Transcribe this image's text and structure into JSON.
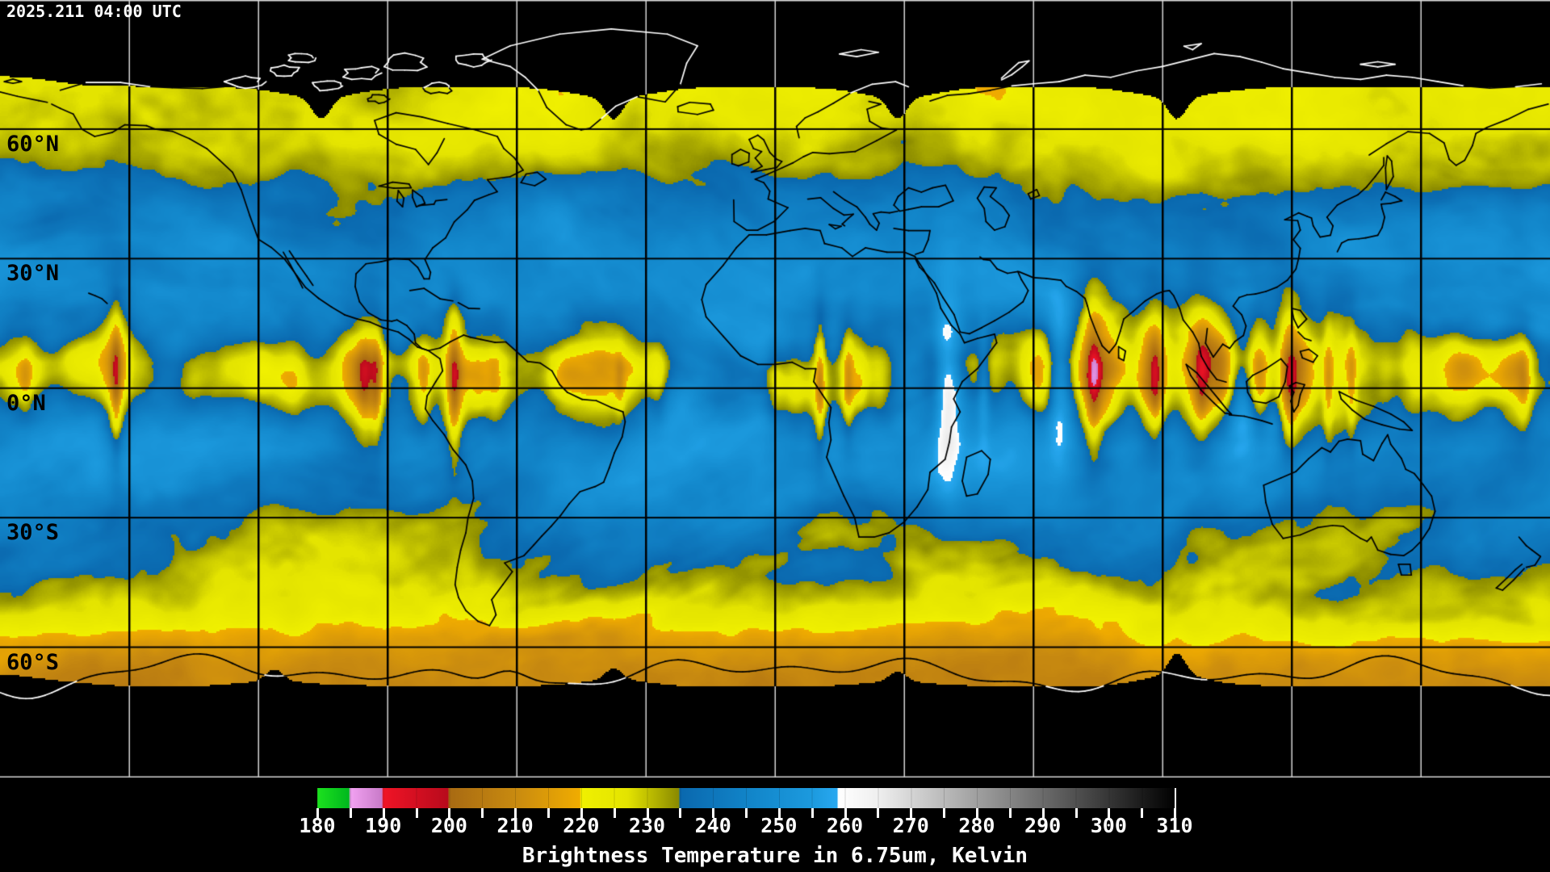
{
  "header": {
    "timestamp": "2025.211 04:00 UTC"
  },
  "map": {
    "latitude_labels": [
      {
        "text": "60°N",
        "lat": 60
      },
      {
        "text": "30°N",
        "lat": 30
      },
      {
        "text": "0°N",
        "lat": 0
      },
      {
        "text": "30°S",
        "lat": -30
      },
      {
        "text": "60°S",
        "lat": -60
      }
    ],
    "grid": {
      "lon_step_deg": 30,
      "lat_step_deg": 30,
      "color_over_data": "#000000",
      "color_over_space": "#d6d6d6"
    },
    "space_color": "#000000",
    "coastline": {
      "color_over_data": "#000000",
      "color_over_space": "#ffffff"
    }
  },
  "colorbar": {
    "title": "Brightness Temperature in 6.75um, Kelvin",
    "min": 180,
    "max": 310,
    "tick_step": 5,
    "label_step": 10,
    "tick_labels": [
      "180",
      "190",
      "200",
      "210",
      "220",
      "230",
      "240",
      "250",
      "260",
      "270",
      "280",
      "290",
      "300",
      "310"
    ],
    "stops": [
      [
        180,
        "#1ce11e"
      ],
      [
        184.8,
        "#00b81e"
      ],
      [
        185,
        "#f2a2f2"
      ],
      [
        189.8,
        "#c87ac8"
      ],
      [
        190,
        "#f01426"
      ],
      [
        199.8,
        "#b80a1c"
      ],
      [
        200,
        "#a86a12"
      ],
      [
        210,
        "#c88a10"
      ],
      [
        219.8,
        "#f0ac00"
      ],
      [
        220,
        "#f0f000"
      ],
      [
        227,
        "#e4e400"
      ],
      [
        234.8,
        "#8a8a00"
      ],
      [
        235,
        "#0a68ae"
      ],
      [
        246,
        "#1286ca"
      ],
      [
        255,
        "#1c9ade"
      ],
      [
        258.8,
        "#28a8f0"
      ],
      [
        259,
        "#ffffff"
      ],
      [
        265,
        "#efefef"
      ],
      [
        310,
        "#010101"
      ]
    ]
  }
}
